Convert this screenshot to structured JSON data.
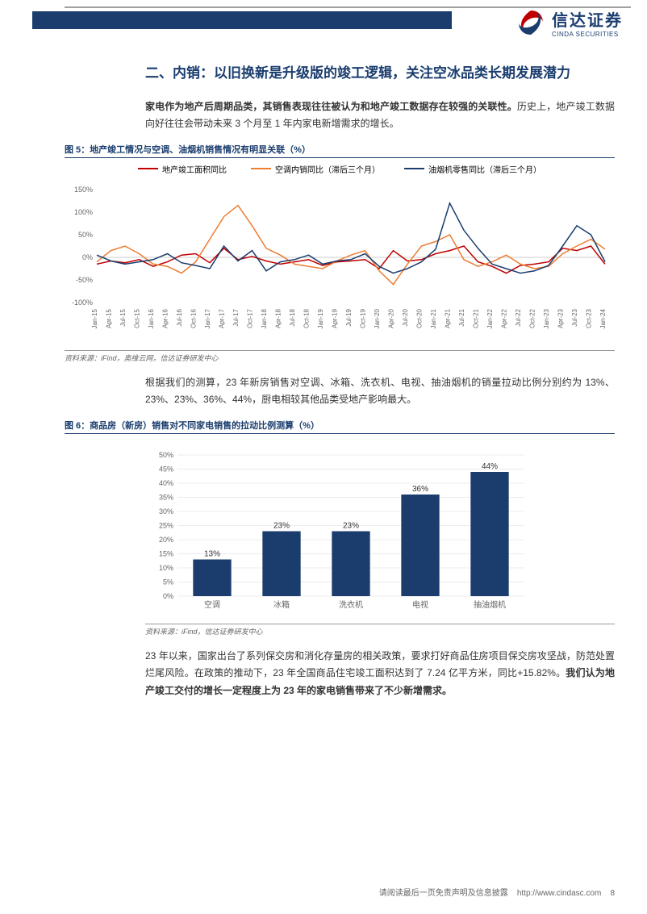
{
  "logo": {
    "cn": "信达证券",
    "en": "CINDA SECURITIES"
  },
  "section_title": "二、内销：以旧换新是升级版的竣工逻辑，关注空冰品类长期发展潜力",
  "intro_bold": "家电作为地产后周期品类，其销售表现往往被认为和地产竣工数据存在较强的关联性。",
  "intro_rest": "历史上，地产竣工数据向好往往会带动未来 3 个月至 1 年内家电新增需求的增长。",
  "fig5": {
    "title": "图 5：地产竣工情况与空调、油烟机销售情况有明显关联（%）",
    "legend": [
      {
        "label": "地产竣工面积同比",
        "color": "#c00000"
      },
      {
        "label": "空调内销同比（滞后三个月）",
        "color": "#ed7d31"
      },
      {
        "label": "油烟机零售同比（滞后三个月）",
        "color": "#1a3d6e"
      }
    ],
    "ylim": [
      -100,
      150
    ],
    "yticks": [
      -100,
      -50,
      0,
      50,
      100,
      150
    ],
    "xlabels": [
      "Jan-15",
      "Apr-15",
      "Jul-15",
      "Oct-15",
      "Jan-16",
      "Apr-16",
      "Jul-16",
      "Oct-16",
      "Jan-17",
      "Apr-17",
      "Jul-17",
      "Oct-17",
      "Jan-18",
      "Apr-18",
      "Jul-18",
      "Oct-18",
      "Jan-19",
      "Apr-19",
      "Jul-19",
      "Oct-19",
      "Jan-20",
      "Apr-20",
      "Jul-20",
      "Oct-20",
      "Jan-21",
      "Apr-21",
      "Jul-21",
      "Oct-21",
      "Jan-22",
      "Apr-22",
      "Jul-22",
      "Oct-22",
      "Jan-23",
      "Apr-23",
      "Jul-23",
      "Oct-23",
      "Jan-24"
    ],
    "series": {
      "completion": [
        -15,
        -8,
        -12,
        -5,
        -20,
        -10,
        5,
        8,
        -12,
        20,
        -5,
        2,
        -8,
        -15,
        -10,
        -5,
        -18,
        -10,
        -8,
        -5,
        -25,
        15,
        -8,
        -5,
        8,
        15,
        25,
        -10,
        -20,
        -35,
        -18,
        -15,
        -10,
        20,
        15,
        25,
        -15
      ],
      "ac": [
        -10,
        15,
        25,
        8,
        -15,
        -20,
        -35,
        -10,
        40,
        90,
        115,
        70,
        20,
        5,
        -15,
        -20,
        -25,
        -8,
        5,
        15,
        -30,
        -60,
        -15,
        25,
        35,
        50,
        -5,
        -20,
        -10,
        5,
        -15,
        -25,
        -20,
        8,
        25,
        40,
        18
      ],
      "hood": [
        5,
        -8,
        -15,
        -10,
        -5,
        8,
        -12,
        -18,
        -25,
        25,
        -8,
        15,
        -30,
        -10,
        -5,
        5,
        -15,
        -8,
        -5,
        8,
        -20,
        -35,
        -25,
        -10,
        18,
        120,
        60,
        20,
        -15,
        -25,
        -35,
        -30,
        -18,
        25,
        70,
        50,
        -10
      ]
    },
    "source": "资料来源：iFind，奥维云网，信达证券研发中心"
  },
  "para2": "根据我们的测算，23 年新房销售对空调、冰箱、洗衣机、电视、抽油烟机的销量拉动比例分别约为 13%、23%、23%、36%、44%，厨电相较其他品类受地产影响最大。",
  "fig6": {
    "title": "图 6：商品房（新房）销售对不同家电销售的拉动比例测算（%）",
    "categories": [
      "空调",
      "冰箱",
      "洗衣机",
      "电视",
      "抽油烟机"
    ],
    "values": [
      13,
      23,
      23,
      36,
      44
    ],
    "value_labels": [
      "13%",
      "23%",
      "23%",
      "36%",
      "44%"
    ],
    "bar_color": "#1a3d6e",
    "ylim": [
      0,
      50
    ],
    "yticks": [
      0,
      5,
      10,
      15,
      20,
      25,
      30,
      35,
      40,
      45,
      50
    ],
    "ytick_labels": [
      "0%",
      "5%",
      "10%",
      "15%",
      "20%",
      "25%",
      "30%",
      "35%",
      "40%",
      "45%",
      "50%"
    ],
    "grid_color": "#d9d9d9",
    "source": "资料来源：iFind，信达证券研发中心"
  },
  "para3_a": "23 年以来，国家出台了系列保交房和消化存量房的相关政策，要求打好商品住房项目保交房攻坚战，防范处置烂尾风险。在政策的推动下，23 年全国商品住宅竣工面积达到了 7.24 亿平方米，同比+15.82%。",
  "para3_bold": "我们认为地产竣工交付的增长一定程度上为 23 年的家电销售带来了不少新增需求。",
  "footer": {
    "disclaimer": "请阅读最后一页免责声明及信息披露",
    "url": "http://www.cindasc.com",
    "page": "8"
  }
}
